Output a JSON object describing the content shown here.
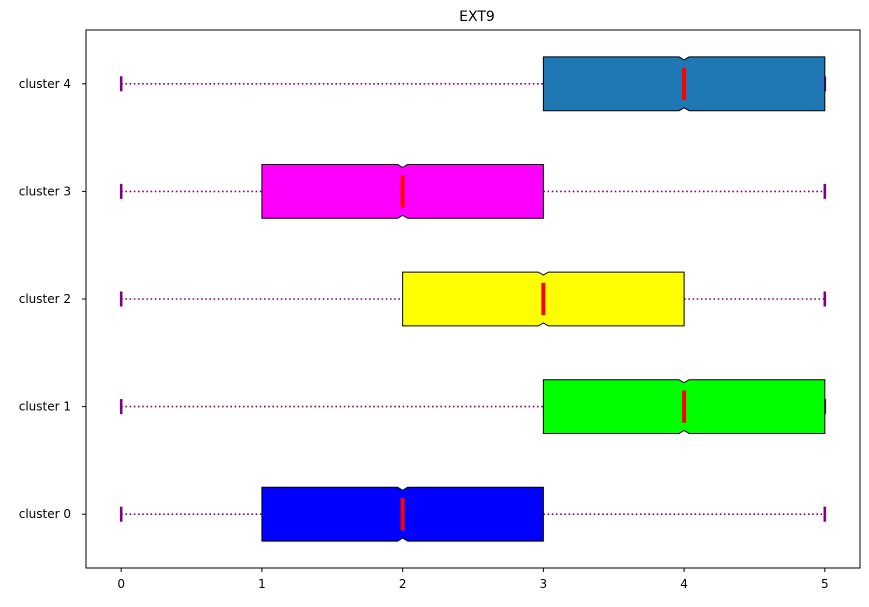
{
  "chart_data": {
    "type": "boxplot",
    "orientation": "horizontal",
    "notched": true,
    "title": "EXT9",
    "xlabel": "",
    "ylabel": "",
    "xlim": [
      -0.25,
      5.25
    ],
    "xticks": [
      0,
      1,
      2,
      3,
      4,
      5
    ],
    "grid": false,
    "categories": [
      "cluster 0",
      "cluster 1",
      "cluster 2",
      "cluster 3",
      "cluster 4"
    ],
    "boxes": [
      {
        "label": "cluster 0",
        "whisker_low": 0,
        "q1": 1,
        "median": 2,
        "q3": 3,
        "whisker_high": 5,
        "color": "#0000ff"
      },
      {
        "label": "cluster 1",
        "whisker_low": 0,
        "q1": 3,
        "median": 4,
        "q3": 5,
        "whisker_high": 5,
        "color": "#00ff00"
      },
      {
        "label": "cluster 2",
        "whisker_low": 0,
        "q1": 2,
        "median": 3,
        "q3": 4,
        "whisker_high": 5,
        "color": "#ffff00"
      },
      {
        "label": "cluster 3",
        "whisker_low": 0,
        "q1": 1,
        "median": 2,
        "q3": 3,
        "whisker_high": 5,
        "color": "#ff00ff"
      },
      {
        "label": "cluster 4",
        "whisker_low": 0,
        "q1": 3,
        "median": 4,
        "q3": 5,
        "whisker_high": 5,
        "color": "#1f77b4"
      }
    ],
    "style": {
      "whisker_color": "#800080",
      "cap_color": "#800080",
      "median_color": "#ff0000",
      "box_edge_color": "#000000"
    }
  }
}
